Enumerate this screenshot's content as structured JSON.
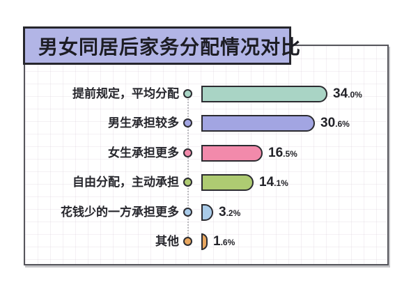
{
  "title": "男女同居后家务分配情况对比",
  "chart_data": {
    "type": "bar",
    "orientation": "horizontal",
    "title": "男女同居后家务分配情况对比",
    "categories": [
      "提前规定，平均分配",
      "男生承担较多",
      "女生承担更多",
      "自由分配，主动承担",
      "花钱少的一方承担更多",
      "其他"
    ],
    "values": [
      34.0,
      30.6,
      16.5,
      14.1,
      3.2,
      1.6
    ],
    "value_labels": [
      "34.0%",
      "30.6%",
      "16.5%",
      "14.1%",
      "3.2%",
      "1.6%"
    ],
    "unit": "%",
    "xlim": [
      0,
      40
    ],
    "grid": true,
    "legend": false,
    "bar_colors": [
      "#a9d4c5",
      "#a2a5e2",
      "#f28aab",
      "#aecb72",
      "#a9cbe9",
      "#e9a75f"
    ]
  },
  "rows": [
    {
      "label": "提前规定，平均分配",
      "percent": 34.0,
      "value_main": "34",
      "value_frac": ".0%",
      "color": "#a9d4c5"
    },
    {
      "label": "男生承担较多",
      "percent": 30.6,
      "value_main": "30",
      "value_frac": ".6%",
      "color": "#a2a5e2"
    },
    {
      "label": "女生承担更多",
      "percent": 16.5,
      "value_main": "16",
      "value_frac": ".5%",
      "color": "#f28aab"
    },
    {
      "label": "自由分配，主动承担",
      "percent": 14.1,
      "value_main": "14",
      "value_frac": ".1%",
      "color": "#aecb72"
    },
    {
      "label": "花钱少的一方承担更多",
      "percent": 3.2,
      "value_main": "3",
      "value_frac": ".2%",
      "color": "#a9cbe9"
    },
    {
      "label": "其他",
      "percent": 1.6,
      "value_main": "1",
      "value_frac": ".6%",
      "color": "#e9a75f"
    }
  ],
  "style": {
    "title_bg": "#b2b5e6",
    "outline_color": "#2b2b30",
    "card_border_color": "#55555b",
    "connector_color": "#b9b9bd",
    "text_color": "#26262c"
  }
}
